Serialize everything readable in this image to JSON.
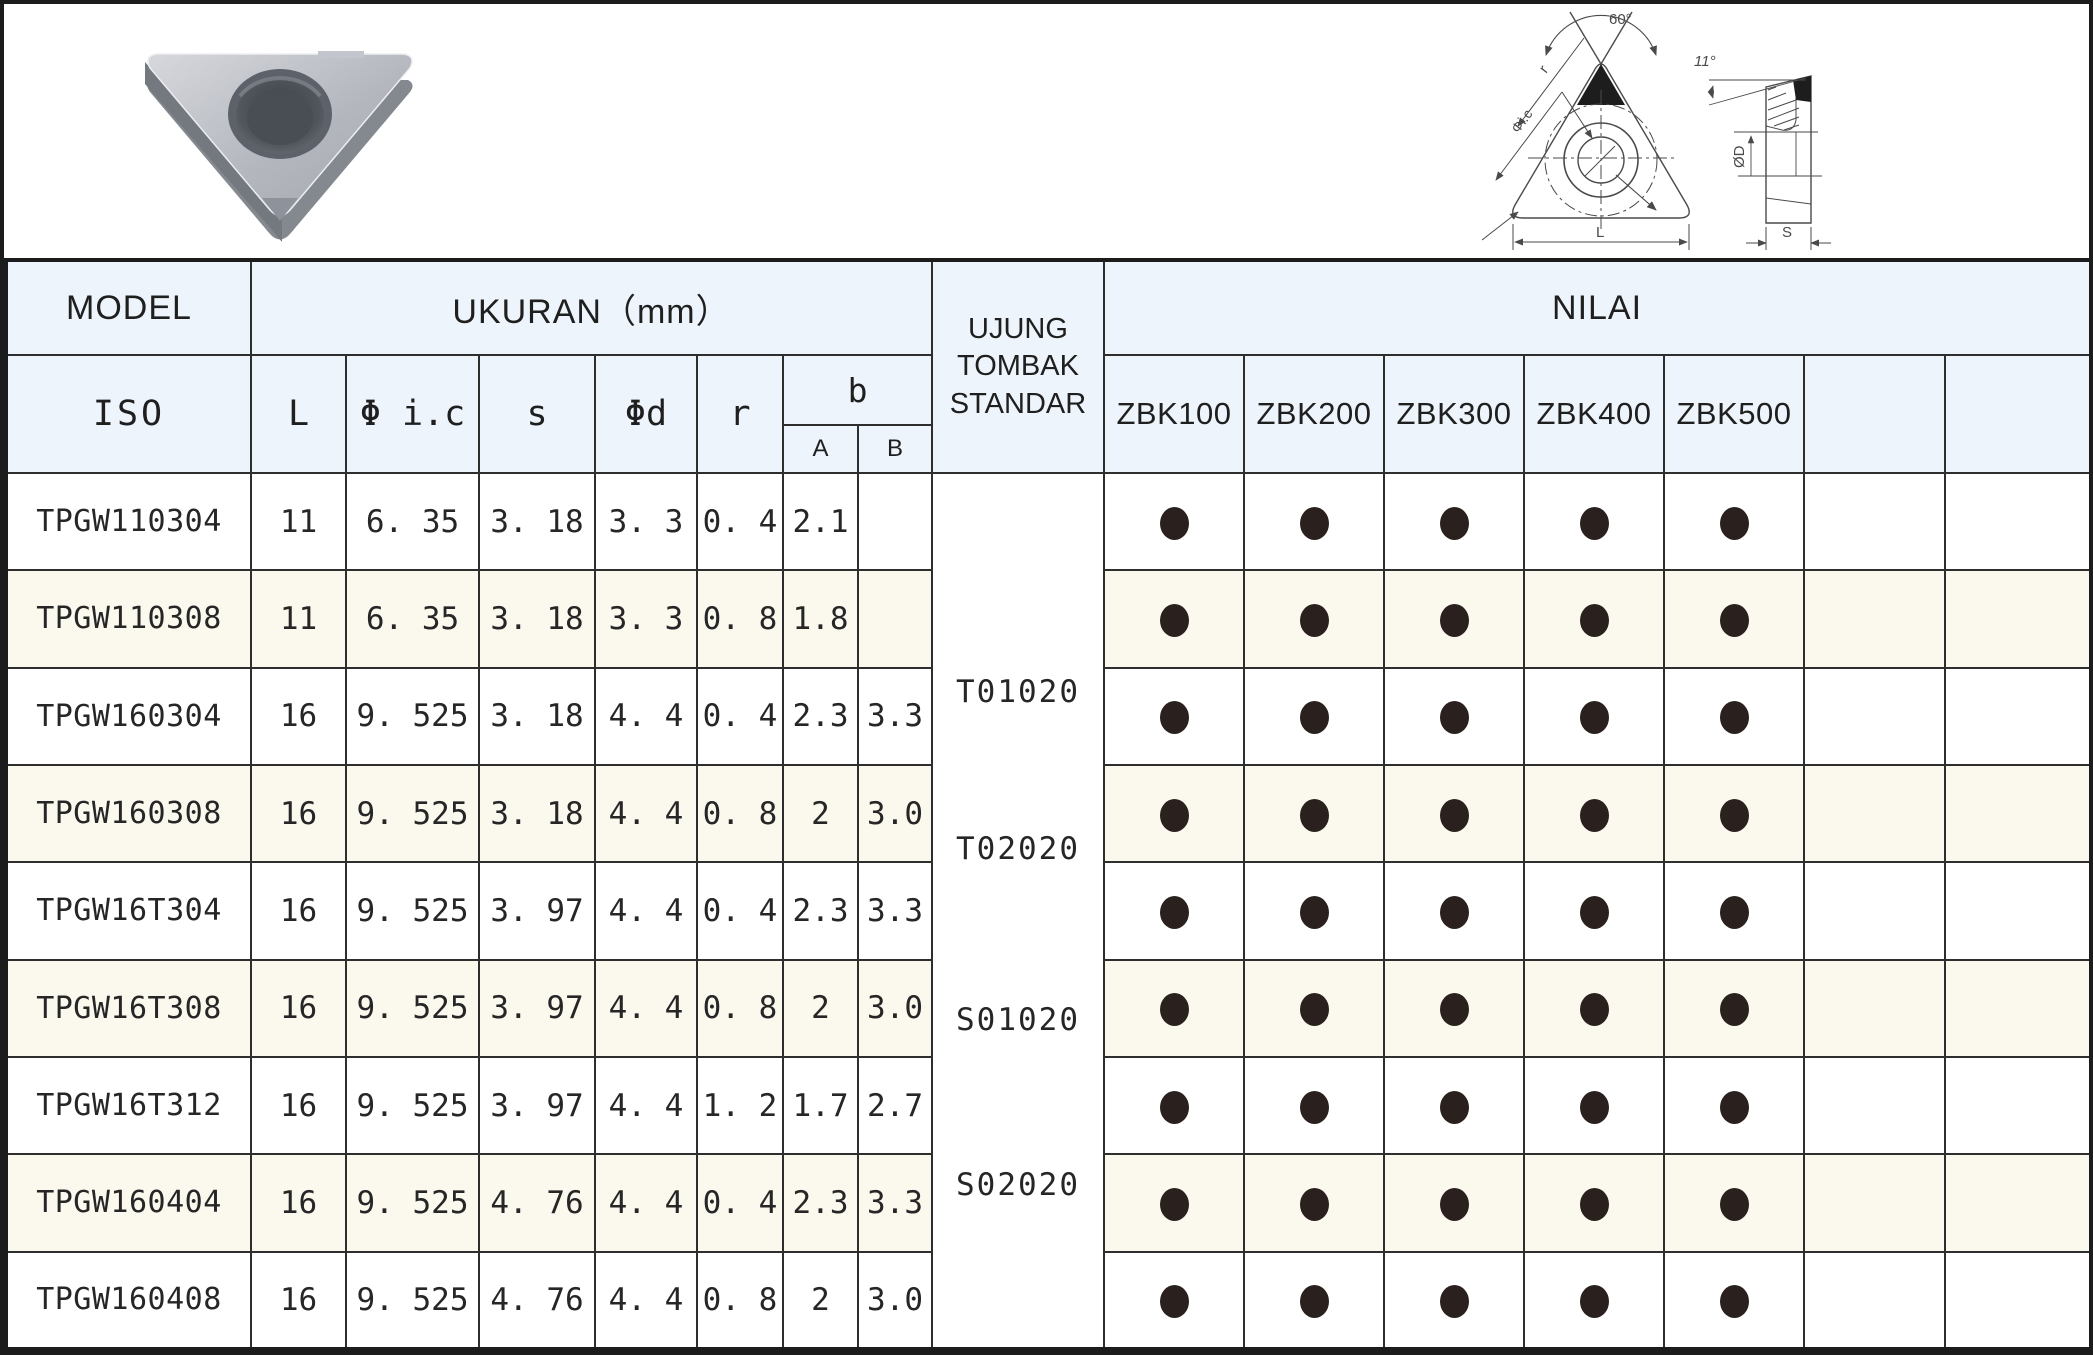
{
  "table": {
    "header": {
      "model": "MODEL",
      "ukuran": "UKURAN（mm）",
      "ujung": "UJUNG TOMBAK STANDAR",
      "nilai": "NILAI",
      "iso": "ISO",
      "dims": [
        "L",
        "Φ i.c",
        "s",
        "Φd",
        "r"
      ],
      "b": "b",
      "b_sub": [
        "A",
        "B"
      ],
      "grades": [
        "ZBK100",
        "ZBK200",
        "ZBK300",
        "ZBK400",
        "ZBK500",
        "",
        ""
      ]
    },
    "standards": [
      "T01020",
      "T02020",
      "S01020",
      "S02020"
    ],
    "rows": [
      {
        "iso": "TPGW110304",
        "L": "11",
        "ic": "6. 35",
        "s": "3. 18",
        "d": "3. 3",
        "r": "0. 4",
        "A": "2.1",
        "B": "",
        "dots": [
          1,
          1,
          1,
          1,
          1,
          0,
          0
        ]
      },
      {
        "iso": "TPGW110308",
        "L": "11",
        "ic": "6. 35",
        "s": "3. 18",
        "d": "3. 3",
        "r": "0. 8",
        "A": "1.8",
        "B": "",
        "dots": [
          1,
          1,
          1,
          1,
          1,
          0,
          0
        ]
      },
      {
        "iso": "TPGW160304",
        "L": "16",
        "ic": "9. 525",
        "s": "3. 18",
        "d": "4. 4",
        "r": "0. 4",
        "A": "2.3",
        "B": "3.3",
        "dots": [
          1,
          1,
          1,
          1,
          1,
          0,
          0
        ]
      },
      {
        "iso": "TPGW160308",
        "L": "16",
        "ic": "9. 525",
        "s": "3. 18",
        "d": "4. 4",
        "r": "0. 8",
        "A": "2",
        "B": "3.0",
        "dots": [
          1,
          1,
          1,
          1,
          1,
          0,
          0
        ]
      },
      {
        "iso": "TPGW16T304",
        "L": "16",
        "ic": "9. 525",
        "s": "3. 97",
        "d": "4. 4",
        "r": "0. 4",
        "A": "2.3",
        "B": "3.3",
        "dots": [
          1,
          1,
          1,
          1,
          1,
          0,
          0
        ]
      },
      {
        "iso": "TPGW16T308",
        "L": "16",
        "ic": "9. 525",
        "s": "3. 97",
        "d": "4. 4",
        "r": "0. 8",
        "A": "2",
        "B": "3.0",
        "dots": [
          1,
          1,
          1,
          1,
          1,
          0,
          0
        ]
      },
      {
        "iso": "TPGW16T312",
        "L": "16",
        "ic": "9. 525",
        "s": "3. 97",
        "d": "4. 4",
        "r": "1. 2",
        "A": "1.7",
        "B": "2.7",
        "dots": [
          1,
          1,
          1,
          1,
          1,
          0,
          0
        ]
      },
      {
        "iso": "TPGW160404",
        "L": "16",
        "ic": "9. 525",
        "s": "4. 76",
        "d": "4. 4",
        "r": "0. 4",
        "A": "2.3",
        "B": "3.3",
        "dots": [
          1,
          1,
          1,
          1,
          1,
          0,
          0
        ]
      },
      {
        "iso": "TPGW160408",
        "L": "16",
        "ic": "9. 525",
        "s": "4. 76",
        "d": "4. 4",
        "r": "0. 8",
        "A": "2",
        "B": "3.0",
        "dots": [
          1,
          1,
          1,
          1,
          1,
          0,
          0
        ]
      }
    ]
  },
  "drawing": {
    "angle_front": "60°",
    "radius_label": "r",
    "ic_label": "Φi.c",
    "length_label": "L",
    "angle_side": "11°",
    "diameter_label": "ØD",
    "thickness_label": "S"
  },
  "colors": {
    "header_bg": "#EDF4FB",
    "stripe_bg": "#FBF8EE",
    "border": "#2e2e2e",
    "dot": "#2a211e"
  }
}
